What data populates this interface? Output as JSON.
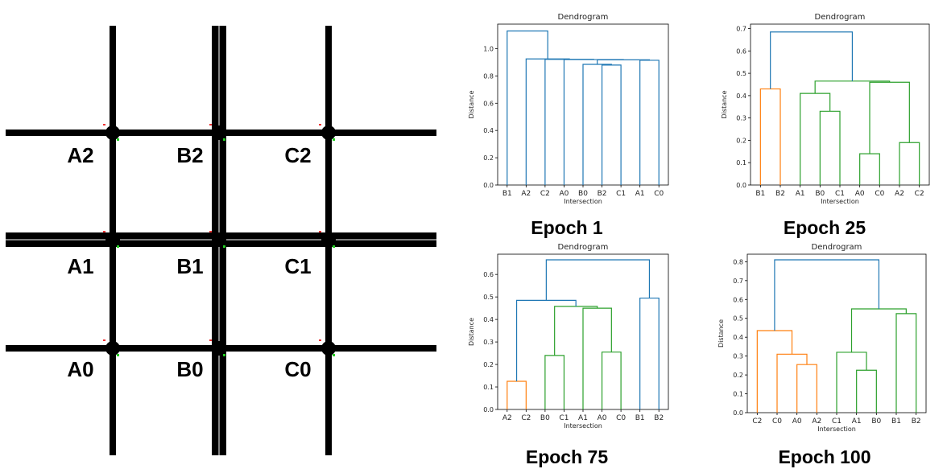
{
  "grid": {
    "intersections": [
      {
        "id": "A2",
        "label": "A2"
      },
      {
        "id": "B2",
        "label": "B2"
      },
      {
        "id": "C2",
        "label": "C2"
      },
      {
        "id": "A1",
        "label": "A1"
      },
      {
        "id": "B1",
        "label": "B1"
      },
      {
        "id": "C1",
        "label": "C1"
      },
      {
        "id": "A0",
        "label": "A0"
      },
      {
        "id": "B0",
        "label": "B0"
      },
      {
        "id": "C0",
        "label": "C0"
      }
    ],
    "road_color": "#000000",
    "signal_green": "#22cc22",
    "signal_red": "#ee3333"
  },
  "chart_data": [
    {
      "type": "dendrogram",
      "title": "Dendrogram",
      "caption": "Epoch 1",
      "xlabel": "Intersection",
      "ylabel": "Distance",
      "leaves": [
        "B1",
        "A2",
        "C2",
        "A0",
        "B0",
        "B2",
        "C1",
        "A1",
        "C0"
      ],
      "ylim": [
        0,
        1.18
      ],
      "yticks": [
        "0.0",
        "0.2",
        "0.4",
        "0.6",
        "0.8",
        "1.0"
      ],
      "merges": [
        {
          "a": "B2",
          "b": "C1",
          "distance": 0.88,
          "color": "#1f77b4"
        },
        {
          "a": "B0",
          "b": "(B2,C1)",
          "distance": 0.885,
          "color": "#1f77b4"
        },
        {
          "a": "A1",
          "b": "C0",
          "distance": 0.915,
          "color": "#1f77b4"
        },
        {
          "a": "(B0,B2,C1)",
          "b": "(A1,C0)",
          "distance": 0.918,
          "color": "#1f77b4"
        },
        {
          "a": "A0",
          "b": "(B0,B2,C1,A1,C0)",
          "distance": 0.92,
          "color": "#1f77b4"
        },
        {
          "a": "C2",
          "b": "(A0,...)",
          "distance": 0.922,
          "color": "#1f77b4"
        },
        {
          "a": "A2",
          "b": "(C2,...)",
          "distance": 0.925,
          "color": "#1f77b4"
        },
        {
          "a": "B1",
          "b": "(A2,...)",
          "distance": 1.13,
          "color": "#1f77b4"
        }
      ]
    },
    {
      "type": "dendrogram",
      "title": "Dendrogram",
      "caption": "Epoch 25",
      "xlabel": "Intersection",
      "ylabel": "Distance",
      "leaves": [
        "B1",
        "B2",
        "A1",
        "B0",
        "C1",
        "A0",
        "C0",
        "A2",
        "C2"
      ],
      "ylim": [
        0,
        0.72
      ],
      "yticks": [
        "0.0",
        "0.1",
        "0.2",
        "0.3",
        "0.4",
        "0.5",
        "0.6",
        "0.7"
      ],
      "merges": [
        {
          "a": "B1",
          "b": "B2",
          "distance": 0.43,
          "color": "#ff7f0e"
        },
        {
          "a": "B0",
          "b": "C1",
          "distance": 0.33,
          "color": "#2ca02c"
        },
        {
          "a": "A1",
          "b": "(B0,C1)",
          "distance": 0.41,
          "color": "#2ca02c"
        },
        {
          "a": "A0",
          "b": "C0",
          "distance": 0.14,
          "color": "#2ca02c"
        },
        {
          "a": "A2",
          "b": "C2",
          "distance": 0.19,
          "color": "#2ca02c"
        },
        {
          "a": "(A0,C0)",
          "b": "(A2,C2)",
          "distance": 0.46,
          "color": "#2ca02c"
        },
        {
          "a": "(A1,B0,C1)",
          "b": "(A0,C0,A2,C2)",
          "distance": 0.465,
          "color": "#2ca02c"
        },
        {
          "a": "(B1,B2)",
          "b": "(rest)",
          "distance": 0.685,
          "color": "#1f77b4"
        }
      ]
    },
    {
      "type": "dendrogram",
      "title": "Dendrogram",
      "caption": "Epoch 75",
      "xlabel": "Intersection",
      "ylabel": "Distance",
      "leaves": [
        "A2",
        "C2",
        "B0",
        "C1",
        "A1",
        "A0",
        "C0",
        "B1",
        "B2"
      ],
      "ylim": [
        0,
        0.69
      ],
      "yticks": [
        "0.0",
        "0.1",
        "0.2",
        "0.3",
        "0.4",
        "0.5",
        "0.6"
      ],
      "merges": [
        {
          "a": "A2",
          "b": "C2",
          "distance": 0.125,
          "color": "#ff7f0e"
        },
        {
          "a": "B0",
          "b": "C1",
          "distance": 0.24,
          "color": "#2ca02c"
        },
        {
          "a": "A0",
          "b": "C0",
          "distance": 0.255,
          "color": "#2ca02c"
        },
        {
          "a": "A1",
          "b": "(A0,C0)",
          "distance": 0.45,
          "color": "#2ca02c"
        },
        {
          "a": "(B0,C1)",
          "b": "(A1,A0,C0)",
          "distance": 0.458,
          "color": "#2ca02c"
        },
        {
          "a": "(A2,C2)",
          "b": "(B0,C1,A1,A0,C0)",
          "distance": 0.485,
          "color": "#1f77b4"
        },
        {
          "a": "B1",
          "b": "B2",
          "distance": 0.495,
          "color": "#1f77b4"
        },
        {
          "a": "(left)",
          "b": "(B1,B2)",
          "distance": 0.665,
          "color": "#1f77b4"
        }
      ]
    },
    {
      "type": "dendrogram",
      "title": "Dendrogram",
      "caption": "Epoch 100",
      "xlabel": "Intersection",
      "ylabel": "Distance",
      "leaves": [
        "C2",
        "C0",
        "A0",
        "A2",
        "C1",
        "A1",
        "B0",
        "B1",
        "B2"
      ],
      "ylim": [
        0,
        0.84
      ],
      "yticks": [
        "0.0",
        "0.1",
        "0.2",
        "0.3",
        "0.4",
        "0.5",
        "0.6",
        "0.7",
        "0.8"
      ],
      "merges": [
        {
          "a": "A0",
          "b": "A2",
          "distance": 0.255,
          "color": "#ff7f0e"
        },
        {
          "a": "C0",
          "b": "(A0,A2)",
          "distance": 0.31,
          "color": "#ff7f0e"
        },
        {
          "a": "C2",
          "b": "(C0,A0,A2)",
          "distance": 0.435,
          "color": "#ff7f0e"
        },
        {
          "a": "A1",
          "b": "B0",
          "distance": 0.225,
          "color": "#2ca02c"
        },
        {
          "a": "C1",
          "b": "(A1,B0)",
          "distance": 0.32,
          "color": "#2ca02c"
        },
        {
          "a": "B1",
          "b": "B2",
          "distance": 0.525,
          "color": "#2ca02c"
        },
        {
          "a": "(C1,A1,B0)",
          "b": "(B1,B2)",
          "distance": 0.55,
          "color": "#2ca02c"
        },
        {
          "a": "(left)",
          "b": "(right)",
          "distance": 0.81,
          "color": "#1f77b4"
        }
      ]
    }
  ]
}
